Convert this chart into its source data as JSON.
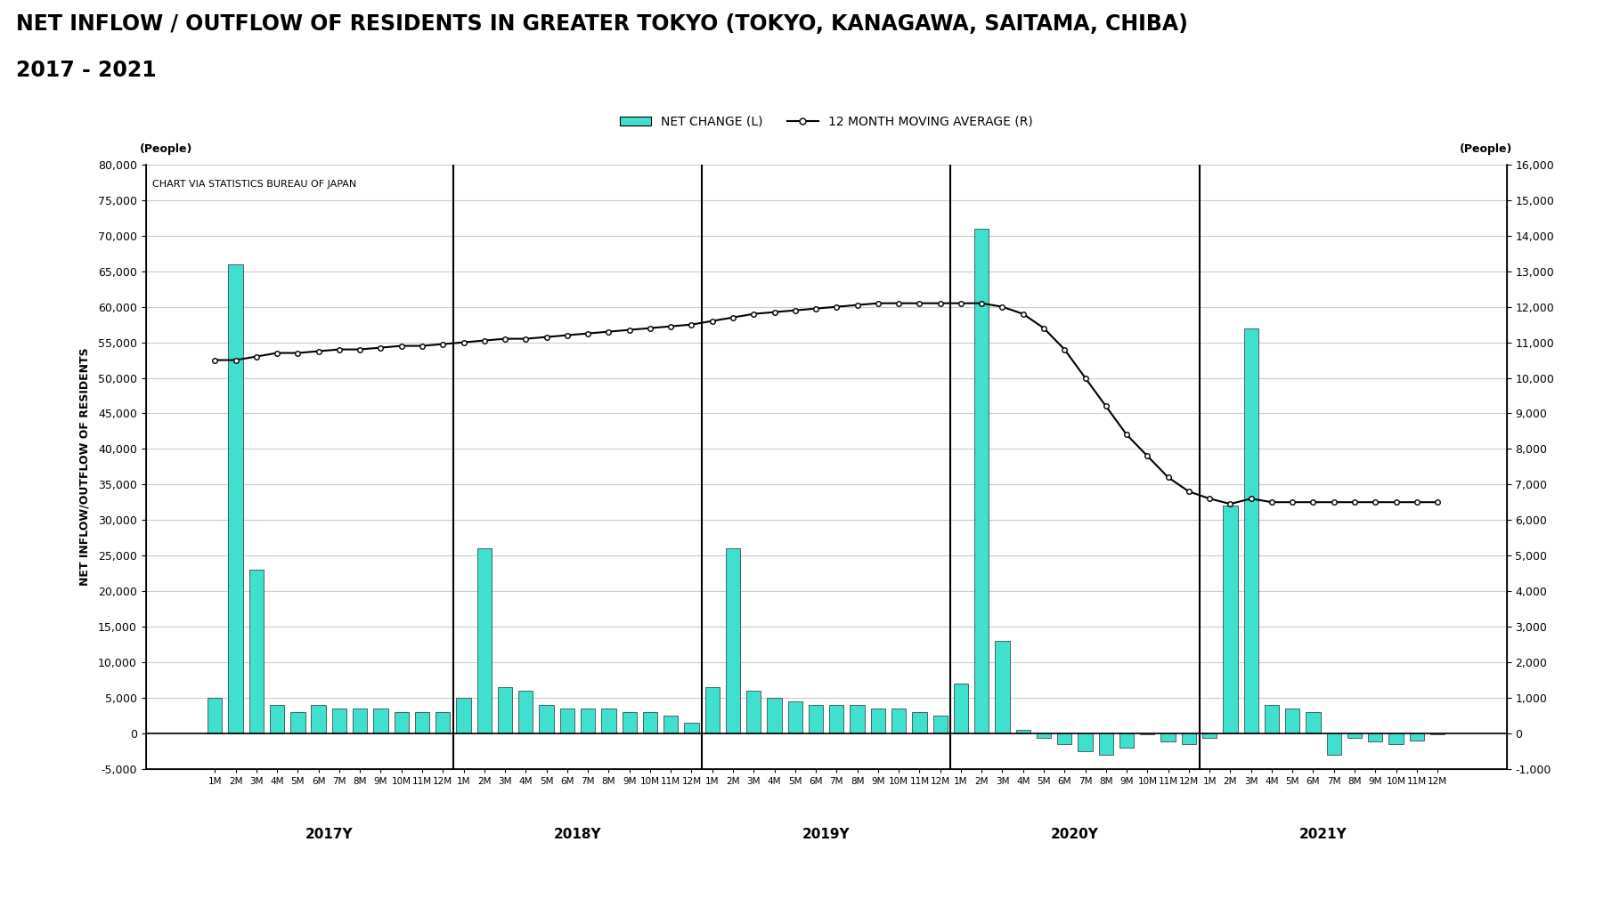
{
  "title_line1": "NET INFLOW / OUTFLOW OF RESIDENTS IN GREATER TOKYO (TOKYO, KANAGAWA, SAITAMA, CHIBA)",
  "title_line2": "2017 - 2021",
  "ylabel_left": "NET INFLOW/OUTFLOW OF RESIDENTS",
  "unit_left": "(People)",
  "unit_right": "(People)",
  "annotation": "CHART VIA STATISTICS BUREAU OF JAPAN",
  "legend_bar": "NET CHANGE (L)",
  "legend_line": "12 MONTH MOVING AVERAGE (R)",
  "bar_color": "#40E0D0",
  "bar_edge_color": "#000000",
  "line_color": "#000000",
  "ylim_left": [
    -5000,
    80000
  ],
  "ylim_right": [
    -1000,
    16000
  ],
  "yticks_left": [
    -5000,
    0,
    5000,
    10000,
    15000,
    20000,
    25000,
    30000,
    35000,
    40000,
    45000,
    50000,
    55000,
    60000,
    65000,
    70000,
    75000,
    80000
  ],
  "yticks_right": [
    -1000,
    0,
    1000,
    2000,
    3000,
    4000,
    5000,
    6000,
    7000,
    8000,
    9000,
    10000,
    11000,
    12000,
    13000,
    14000,
    15000,
    16000
  ],
  "months": [
    "1",
    "2",
    "3",
    "4",
    "5",
    "6",
    "7",
    "8",
    "9",
    "10",
    "11",
    "12"
  ],
  "month_suffix": "M",
  "year_labels": [
    "2017Y",
    "2018Y",
    "2019Y",
    "2020Y",
    "2021Y"
  ],
  "bar_values": [
    5000,
    66000,
    23000,
    4000,
    3000,
    4000,
    3500,
    3500,
    3500,
    3000,
    3000,
    3000,
    5000,
    26000,
    6500,
    6000,
    4000,
    3500,
    3500,
    3500,
    3000,
    3000,
    2500,
    1500,
    6500,
    26000,
    6000,
    5000,
    4500,
    4000,
    4000,
    4000,
    3500,
    3500,
    3000,
    2500,
    7000,
    71000,
    13000,
    400,
    -700,
    -1500,
    -2500,
    -3000,
    -2000,
    -200,
    -1200,
    -1500,
    -700,
    32000,
    57000,
    4000,
    3500,
    3000,
    -3000,
    -700,
    -1200,
    -1500,
    -1000,
    -200
  ],
  "moving_avg": [
    10500,
    10500,
    10600,
    10700,
    10700,
    10750,
    10800,
    10800,
    10850,
    10900,
    10900,
    10950,
    11000,
    11050,
    11100,
    11100,
    11150,
    11200,
    11250,
    11300,
    11350,
    11400,
    11450,
    11500,
    11600,
    11700,
    11800,
    11850,
    11900,
    11950,
    12000,
    12050,
    12100,
    12100,
    12100,
    12100,
    12100,
    12100,
    12000,
    11800,
    11400,
    10800,
    10000,
    9200,
    8400,
    7800,
    7200,
    6800,
    6600,
    6450,
    6600,
    6500,
    6500,
    6500,
    6500,
    6500,
    6500,
    6500,
    6500,
    6500
  ],
  "background_color": "#ffffff",
  "grid_color": "#cccccc",
  "title_fontsize": 17,
  "subtitle_fontsize": 17,
  "tick_fontsize": 9,
  "annotation_fontsize": 8
}
